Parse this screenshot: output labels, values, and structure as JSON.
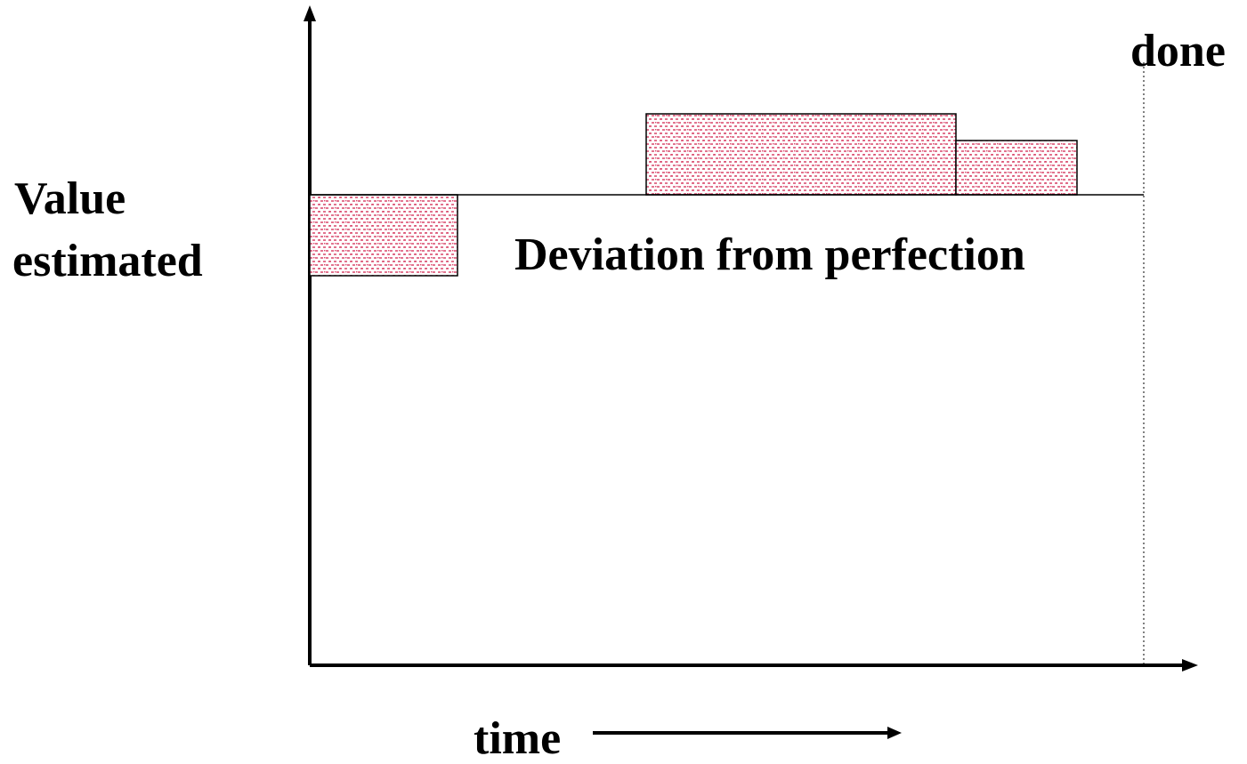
{
  "diagram": {
    "ylabel_line1": "Value",
    "ylabel_line2": "estimated",
    "center_label": "Deviation from perfection",
    "done_label": "done",
    "xlabel": "time",
    "colors": {
      "axis": "#000000",
      "hatch": "#d9466a",
      "background": "#ffffff"
    },
    "deviation_blocks": [
      {
        "id": "early-under",
        "direction": "below"
      },
      {
        "id": "mid-over",
        "direction": "above"
      },
      {
        "id": "late-over",
        "direction": "above"
      }
    ]
  }
}
